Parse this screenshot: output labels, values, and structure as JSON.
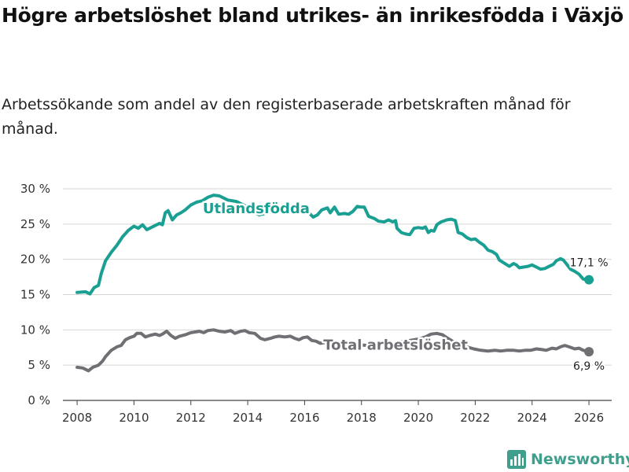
{
  "chart_data": {
    "type": "line",
    "title": "Högre arbetslöshet bland utrikes- än inrikesfödda i Växjö",
    "subtitle": "Arbetssökande som andel av den registerbaserade arbetskraften månad för månad.",
    "xlabel": "",
    "ylabel": "",
    "xlim": [
      2007.5,
      2026.8
    ],
    "ylim": [
      0,
      30
    ],
    "x_ticks": [
      "2008",
      "2010",
      "2012",
      "2014",
      "2016",
      "2018",
      "2020",
      "2022",
      "2024",
      "2026"
    ],
    "y_ticks": [
      "0 %",
      "5 %",
      "10 %",
      "15 %",
      "20 %",
      "25 %",
      "30 %"
    ],
    "grid": true,
    "legend": "none (direct labels on lines)",
    "series": [
      {
        "name": "Utlandsfödda",
        "color": "#1a9f93",
        "end_label": "17,1 %",
        "points": [
          [
            2008.0,
            15.3
          ],
          [
            2008.3,
            15.4
          ],
          [
            2008.45,
            15.1
          ],
          [
            2008.6,
            16.0
          ],
          [
            2008.75,
            16.3
          ],
          [
            2008.85,
            18.0
          ],
          [
            2009.0,
            19.8
          ],
          [
            2009.2,
            21.0
          ],
          [
            2009.4,
            22.0
          ],
          [
            2009.6,
            23.2
          ],
          [
            2009.8,
            24.1
          ],
          [
            2010.0,
            24.7
          ],
          [
            2010.15,
            24.4
          ],
          [
            2010.3,
            24.9
          ],
          [
            2010.45,
            24.2
          ],
          [
            2010.6,
            24.5
          ],
          [
            2010.75,
            24.8
          ],
          [
            2010.9,
            25.1
          ],
          [
            2011.0,
            24.9
          ],
          [
            2011.1,
            26.6
          ],
          [
            2011.2,
            26.9
          ],
          [
            2011.35,
            25.6
          ],
          [
            2011.5,
            26.3
          ],
          [
            2011.65,
            26.6
          ],
          [
            2011.8,
            27.0
          ],
          [
            2012.0,
            27.7
          ],
          [
            2012.2,
            28.1
          ],
          [
            2012.4,
            28.3
          ],
          [
            2012.6,
            28.8
          ],
          [
            2012.8,
            29.1
          ],
          [
            2013.0,
            29.0
          ],
          [
            2013.3,
            28.4
          ],
          [
            2013.6,
            28.2
          ],
          [
            2013.9,
            27.6
          ],
          [
            2014.2,
            26.8
          ],
          [
            2014.4,
            26.3
          ],
          [
            2014.6,
            26.5
          ],
          [
            2014.9,
            26.9
          ],
          [
            2015.2,
            27.3
          ],
          [
            2015.5,
            27.6
          ],
          [
            2015.8,
            27.3
          ],
          [
            2016.0,
            27.1
          ],
          [
            2016.15,
            26.6
          ],
          [
            2016.3,
            26.0
          ],
          [
            2016.45,
            26.3
          ],
          [
            2016.6,
            27.0
          ],
          [
            2016.8,
            27.3
          ],
          [
            2016.9,
            26.6
          ],
          [
            2017.05,
            27.4
          ],
          [
            2017.2,
            26.4
          ],
          [
            2017.4,
            26.5
          ],
          [
            2017.55,
            26.4
          ],
          [
            2017.7,
            26.8
          ],
          [
            2017.85,
            27.5
          ],
          [
            2018.0,
            27.4
          ],
          [
            2018.1,
            27.4
          ],
          [
            2018.25,
            26.1
          ],
          [
            2018.45,
            25.8
          ],
          [
            2018.6,
            25.4
          ],
          [
            2018.8,
            25.3
          ],
          [
            2018.95,
            25.6
          ],
          [
            2019.1,
            25.3
          ],
          [
            2019.2,
            25.5
          ],
          [
            2019.25,
            24.4
          ],
          [
            2019.4,
            23.8
          ],
          [
            2019.55,
            23.6
          ],
          [
            2019.7,
            23.5
          ],
          [
            2019.85,
            24.4
          ],
          [
            2020.0,
            24.5
          ],
          [
            2020.15,
            24.4
          ],
          [
            2020.25,
            24.6
          ],
          [
            2020.35,
            23.8
          ],
          [
            2020.45,
            24.1
          ],
          [
            2020.55,
            24.0
          ],
          [
            2020.65,
            24.9
          ],
          [
            2020.8,
            25.3
          ],
          [
            2021.0,
            25.6
          ],
          [
            2021.15,
            25.7
          ],
          [
            2021.3,
            25.5
          ],
          [
            2021.4,
            23.8
          ],
          [
            2021.55,
            23.6
          ],
          [
            2021.7,
            23.1
          ],
          [
            2021.85,
            22.8
          ],
          [
            2022.0,
            22.9
          ],
          [
            2022.15,
            22.4
          ],
          [
            2022.3,
            22.0
          ],
          [
            2022.45,
            21.3
          ],
          [
            2022.6,
            21.1
          ],
          [
            2022.75,
            20.7
          ],
          [
            2022.85,
            19.9
          ],
          [
            2023.0,
            19.5
          ],
          [
            2023.2,
            19.0
          ],
          [
            2023.35,
            19.4
          ],
          [
            2023.45,
            19.2
          ],
          [
            2023.55,
            18.8
          ],
          [
            2023.7,
            18.9
          ],
          [
            2023.85,
            19.0
          ],
          [
            2024.0,
            19.2
          ],
          [
            2024.15,
            18.9
          ],
          [
            2024.3,
            18.6
          ],
          [
            2024.45,
            18.7
          ],
          [
            2024.6,
            19.0
          ],
          [
            2024.75,
            19.3
          ],
          [
            2024.85,
            19.8
          ],
          [
            2025.0,
            20.1
          ],
          [
            2025.1,
            19.9
          ],
          [
            2025.2,
            19.4
          ],
          [
            2025.35,
            18.6
          ],
          [
            2025.5,
            18.3
          ],
          [
            2025.65,
            17.9
          ],
          [
            2025.8,
            17.2
          ],
          [
            2026.0,
            17.1
          ]
        ]
      },
      {
        "name": "Total arbetslöshet",
        "color": "#6f6f74",
        "end_label": "6,9 %",
        "points": [
          [
            2008.0,
            4.7
          ],
          [
            2008.2,
            4.6
          ],
          [
            2008.4,
            4.2
          ],
          [
            2008.55,
            4.7
          ],
          [
            2008.75,
            5.0
          ],
          [
            2008.9,
            5.6
          ],
          [
            2009.0,
            6.2
          ],
          [
            2009.2,
            7.1
          ],
          [
            2009.4,
            7.6
          ],
          [
            2009.55,
            7.8
          ],
          [
            2009.7,
            8.6
          ],
          [
            2009.85,
            8.9
          ],
          [
            2010.0,
            9.1
          ],
          [
            2010.1,
            9.5
          ],
          [
            2010.25,
            9.5
          ],
          [
            2010.4,
            9.0
          ],
          [
            2010.55,
            9.2
          ],
          [
            2010.75,
            9.4
          ],
          [
            2010.9,
            9.2
          ],
          [
            2011.0,
            9.4
          ],
          [
            2011.15,
            9.8
          ],
          [
            2011.3,
            9.2
          ],
          [
            2011.45,
            8.8
          ],
          [
            2011.6,
            9.1
          ],
          [
            2011.8,
            9.3
          ],
          [
            2012.0,
            9.6
          ],
          [
            2012.15,
            9.7
          ],
          [
            2012.3,
            9.8
          ],
          [
            2012.45,
            9.6
          ],
          [
            2012.6,
            9.9
          ],
          [
            2012.8,
            10.0
          ],
          [
            2013.0,
            9.8
          ],
          [
            2013.2,
            9.7
          ],
          [
            2013.4,
            9.9
          ],
          [
            2013.55,
            9.5
          ],
          [
            2013.75,
            9.8
          ],
          [
            2013.9,
            9.9
          ],
          [
            2014.05,
            9.6
          ],
          [
            2014.25,
            9.5
          ],
          [
            2014.45,
            8.8
          ],
          [
            2014.6,
            8.6
          ],
          [
            2014.8,
            8.8
          ],
          [
            2014.95,
            9.0
          ],
          [
            2015.1,
            9.1
          ],
          [
            2015.3,
            9.0
          ],
          [
            2015.5,
            9.1
          ],
          [
            2015.65,
            8.8
          ],
          [
            2015.8,
            8.6
          ],
          [
            2015.95,
            8.9
          ],
          [
            2016.1,
            9.0
          ],
          [
            2016.25,
            8.5
          ],
          [
            2016.4,
            8.4
          ],
          [
            2016.55,
            8.1
          ],
          [
            2016.7,
            8.2
          ],
          [
            2016.85,
            8.3
          ],
          [
            2017.0,
            8.4
          ],
          [
            2017.15,
            8.0
          ],
          [
            2017.35,
            7.9
          ],
          [
            2017.6,
            7.9
          ],
          [
            2017.9,
            7.9
          ],
          [
            2018.2,
            7.8
          ],
          [
            2018.5,
            7.9
          ],
          [
            2018.8,
            8.0
          ],
          [
            2019.1,
            8.1
          ],
          [
            2019.4,
            8.3
          ],
          [
            2019.7,
            8.5
          ],
          [
            2020.0,
            8.7
          ],
          [
            2020.25,
            9.0
          ],
          [
            2020.45,
            9.4
          ],
          [
            2020.65,
            9.5
          ],
          [
            2020.85,
            9.3
          ],
          [
            2021.0,
            8.9
          ],
          [
            2021.2,
            8.4
          ],
          [
            2021.45,
            8.0
          ],
          [
            2021.7,
            7.6
          ],
          [
            2021.95,
            7.3
          ],
          [
            2022.2,
            7.1
          ],
          [
            2022.45,
            7.0
          ],
          [
            2022.7,
            7.1
          ],
          [
            2022.9,
            7.0
          ],
          [
            2023.1,
            7.1
          ],
          [
            2023.35,
            7.1
          ],
          [
            2023.55,
            7.0
          ],
          [
            2023.75,
            7.1
          ],
          [
            2023.95,
            7.1
          ],
          [
            2024.15,
            7.3
          ],
          [
            2024.35,
            7.2
          ],
          [
            2024.5,
            7.1
          ],
          [
            2024.7,
            7.4
          ],
          [
            2024.85,
            7.3
          ],
          [
            2025.0,
            7.6
          ],
          [
            2025.15,
            7.8
          ],
          [
            2025.3,
            7.6
          ],
          [
            2025.5,
            7.3
          ],
          [
            2025.65,
            7.4
          ],
          [
            2025.8,
            7.1
          ],
          [
            2026.0,
            6.9
          ]
        ]
      }
    ]
  },
  "footer": {
    "brand": "Newsworthy",
    "logo_icon": "bar-chart-icon",
    "brand_color": "#3f9f8c"
  }
}
